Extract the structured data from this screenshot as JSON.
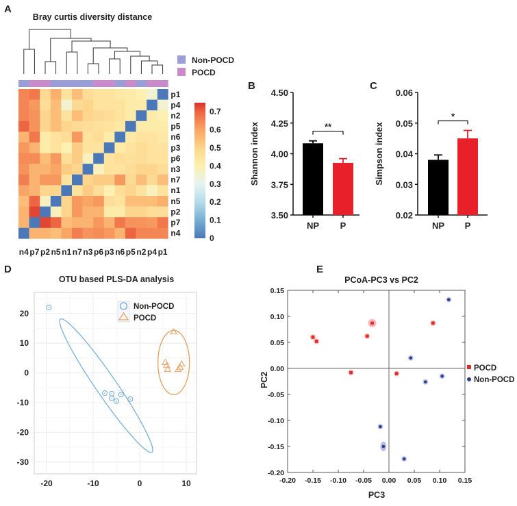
{
  "chart_data": [
    {
      "panel": "A",
      "type": "heatmap",
      "title": "Bray curtis diversity distance",
      "columns": [
        "n4",
        "p7",
        "p2",
        "n5",
        "n1",
        "n7",
        "n3",
        "p6",
        "p3",
        "n6",
        "p5",
        "n2",
        "p4",
        "p1"
      ],
      "rows": [
        "p1",
        "p4",
        "n2",
        "p5",
        "n6",
        "p3",
        "p6",
        "n3",
        "n7",
        "n1",
        "n5",
        "p2",
        "p7",
        "n4"
      ],
      "column_groups": [
        "Non-POCD",
        "POCD",
        "POCD",
        "Non-POCD",
        "Non-POCD",
        "Non-POCD",
        "Non-POCD",
        "POCD",
        "POCD",
        "Non-POCD",
        "POCD",
        "Non-POCD",
        "POCD",
        "POCD"
      ],
      "values": [
        [
          0.65,
          0.67,
          0.48,
          0.58,
          0.45,
          0.55,
          0.47,
          0.45,
          0.45,
          0.43,
          0.42,
          0.4,
          0.35,
          0
        ],
        [
          0.65,
          0.62,
          0.47,
          0.55,
          0.35,
          0.48,
          0.5,
          0.45,
          0.45,
          0.45,
          0.42,
          0.42,
          0,
          0.35
        ],
        [
          0.65,
          0.63,
          0.5,
          0.55,
          0.45,
          0.55,
          0.5,
          0.48,
          0.47,
          0.45,
          0.42,
          0,
          0.42,
          0.4
        ],
        [
          0.7,
          0.63,
          0.5,
          0.55,
          0.5,
          0.48,
          0.47,
          0.46,
          0.45,
          0.43,
          0,
          0.42,
          0.42,
          0.42
        ],
        [
          0.57,
          0.67,
          0.42,
          0.45,
          0.47,
          0.62,
          0.45,
          0.47,
          0.42,
          0,
          0.43,
          0.45,
          0.45,
          0.43
        ],
        [
          0.62,
          0.57,
          0.42,
          0.45,
          0.4,
          0.52,
          0.45,
          0.45,
          0,
          0.42,
          0.45,
          0.47,
          0.45,
          0.45
        ],
        [
          0.64,
          0.64,
          0.55,
          0.62,
          0.47,
          0.52,
          0.38,
          0,
          0.45,
          0.47,
          0.46,
          0.47,
          0.45,
          0.45
        ],
        [
          0.63,
          0.57,
          0.57,
          0.6,
          0.52,
          0.5,
          0,
          0.38,
          0.45,
          0.45,
          0.47,
          0.5,
          0.5,
          0.47
        ],
        [
          0.66,
          0.57,
          0.62,
          0.62,
          0.45,
          0,
          0.5,
          0.52,
          0.52,
          0.62,
          0.48,
          0.55,
          0.48,
          0.55
        ],
        [
          0.6,
          0.57,
          0.5,
          0.5,
          0,
          0.45,
          0.52,
          0.47,
          0.4,
          0.47,
          0.5,
          0.45,
          0.38,
          0.45
        ],
        [
          0.55,
          0.7,
          0.38,
          0,
          0.5,
          0.62,
          0.6,
          0.62,
          0.47,
          0.45,
          0.55,
          0.55,
          0.55,
          0.58
        ],
        [
          0.57,
          0.73,
          0,
          0.38,
          0.5,
          0.62,
          0.57,
          0.57,
          0.42,
          0.42,
          0.5,
          0.5,
          0.47,
          0.47
        ],
        [
          0.57,
          0,
          0.73,
          0.7,
          0.55,
          0.57,
          0.57,
          0.62,
          0.57,
          0.67,
          0.63,
          0.63,
          0.62,
          0.67
        ],
        [
          0,
          0.57,
          0.57,
          0.55,
          0.6,
          0.66,
          0.63,
          0.64,
          0.62,
          0.57,
          0.7,
          0.65,
          0.65,
          0.65
        ]
      ],
      "colorbar_ticks": [
        "0",
        "0.1",
        "0.2",
        "0.3",
        "0.4",
        "0.5",
        "0.6",
        "0.7"
      ],
      "colorbar_range": [
        0,
        0.75
      ],
      "legend": [
        {
          "label": "Non-POCD",
          "color": "#9a9ed6"
        },
        {
          "label": "POCD",
          "color": "#c98bc9"
        }
      ]
    },
    {
      "panel": "B",
      "type": "bar",
      "categories": [
        "NP",
        "P"
      ],
      "values": [
        4.085,
        3.925
      ],
      "errors": [
        0.02,
        0.035
      ],
      "colors": [
        "#000000",
        "#e8202a"
      ],
      "ylabel": "Shannon index",
      "ylim": [
        3.5,
        4.5
      ],
      "yticks": [
        "3.50",
        "3.75",
        "4.00",
        "4.25",
        "4.50"
      ],
      "significance": "**"
    },
    {
      "panel": "C",
      "type": "bar",
      "categories": [
        "NP",
        "P"
      ],
      "values": [
        0.038,
        0.045
      ],
      "errors": [
        0.0016,
        0.0026
      ],
      "colors": [
        "#000000",
        "#e8202a"
      ],
      "ylabel": "Simpson index",
      "ylim": [
        0.02,
        0.06
      ],
      "yticks": [
        "0.02",
        "0.03",
        "0.04",
        "0.05",
        "0.06"
      ],
      "significance": "*"
    },
    {
      "panel": "D",
      "type": "scatter",
      "title": "OTU based PLS-DA analysis",
      "xticks": [
        "-20",
        "-10",
        "0",
        "10"
      ],
      "yticks": [
        "20",
        "10",
        "0",
        "-10",
        "-20",
        "-30"
      ],
      "xlim": [
        -23,
        12
      ],
      "ylim": [
        -34,
        26
      ],
      "grid": true,
      "legend_position": "top-right",
      "series": [
        {
          "name": "Non-POCD",
          "color": "#6fa8d8",
          "marker": "circle",
          "points": [
            [
              -19.5,
              22
            ],
            [
              -7.5,
              -6.8
            ],
            [
              -6,
              -7
            ],
            [
              -6,
              -8.5
            ],
            [
              -4,
              -7.3
            ],
            [
              -5,
              -9.5
            ],
            [
              -2,
              -8.8
            ]
          ]
        },
        {
          "name": "POCD",
          "color": "#e8a062",
          "marker": "triangle",
          "points": [
            [
              7.3,
              13.8
            ],
            [
              5.5,
              3.5
            ],
            [
              5.8,
              2.5
            ],
            [
              6,
              1.2
            ],
            [
              8.3,
              1.2
            ],
            [
              8.7,
              1.8
            ],
            [
              9,
              3
            ]
          ]
        }
      ]
    },
    {
      "panel": "E",
      "type": "scatter",
      "title": "PCoA-PC3 vs PC2",
      "xlabel": "PC3",
      "ylabel": "PC2",
      "xticks": [
        "-0.20",
        "-0.15",
        "-0.10",
        "-0.05",
        "0.00",
        "0.05",
        "0.10",
        "0.15"
      ],
      "yticks": [
        "0.15",
        "0.10",
        "0.05",
        "0.00",
        "-0.05",
        "-0.10",
        "-0.15",
        "-0.20"
      ],
      "xlim": [
        -0.2,
        0.15
      ],
      "ylim": [
        -0.2,
        0.15
      ],
      "legend_position": "right",
      "series": [
        {
          "name": "POCD",
          "color": "#e02a2a",
          "marker": "square",
          "points": [
            [
              -0.15,
              0.06
            ],
            [
              -0.143,
              0.052
            ],
            [
              -0.033,
              0.087
            ],
            [
              -0.043,
              0.062
            ],
            [
              0.087,
              0.087
            ],
            [
              -0.075,
              -0.008
            ],
            [
              0.015,
              -0.01
            ]
          ]
        },
        {
          "name": "Non-POCD",
          "color": "#2c3f8f",
          "marker": "circle",
          "points": [
            [
              0.118,
              0.132
            ],
            [
              0.043,
              0.02
            ],
            [
              0.105,
              -0.015
            ],
            [
              0.072,
              -0.026
            ],
            [
              -0.017,
              -0.112
            ],
            [
              -0.011,
              -0.15
            ],
            [
              0.03,
              -0.174
            ]
          ]
        }
      ]
    }
  ],
  "panel_labels": [
    "A",
    "B",
    "C",
    "D",
    "E"
  ]
}
